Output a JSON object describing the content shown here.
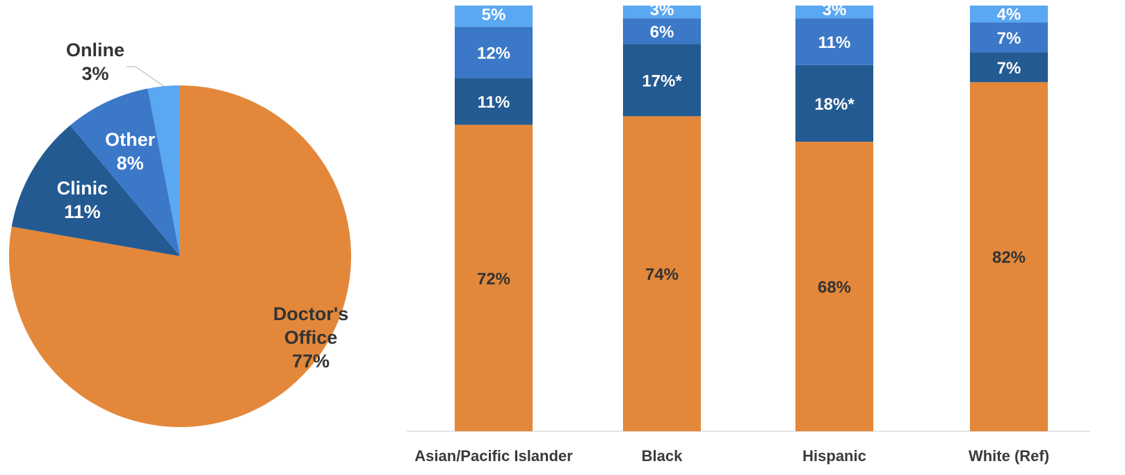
{
  "colors": {
    "doctors_office": "#E3883B",
    "clinic": "#245A92",
    "other": "#3B78C8",
    "online": "#5AA7F2",
    "light_text": "#ffffff",
    "dark_text": "#333333",
    "axis": "#cccccc"
  },
  "chart_data": [
    {
      "type": "pie",
      "slices": [
        {
          "name": "Doctor's Office",
          "label_lines": [
            "Doctor's",
            "Office"
          ],
          "value": 77,
          "value_label": "77%",
          "color": "#E3883B"
        },
        {
          "name": "Clinic",
          "label_lines": [
            "Clinic"
          ],
          "value": 11,
          "value_label": "11%",
          "color": "#245A92"
        },
        {
          "name": "Other",
          "label_lines": [
            "Other"
          ],
          "value": 8,
          "value_label": "8%",
          "color": "#3B78C8"
        },
        {
          "name": "Online",
          "label_lines": [
            "Online"
          ],
          "value": 3,
          "value_label": "3%",
          "color": "#5AA7F2"
        }
      ]
    },
    {
      "type": "bar",
      "stacked": true,
      "categories": [
        "Asian/Pacific Islander",
        "Black",
        "Hispanic",
        "White (Ref)"
      ],
      "ylim": [
        0,
        100
      ],
      "series": [
        {
          "key": "doctors_office",
          "values": [
            72,
            74,
            68,
            82
          ],
          "labels": [
            "72%",
            "74%",
            "68%",
            "82%"
          ],
          "color": "#E3883B"
        },
        {
          "key": "clinic",
          "values": [
            11,
            17,
            18,
            7
          ],
          "labels": [
            "11%",
            "17%*",
            "18%*",
            "7%"
          ],
          "color": "#245A92"
        },
        {
          "key": "other",
          "values": [
            12,
            6,
            11,
            7
          ],
          "labels": [
            "12%",
            "6%",
            "11%",
            "7%"
          ],
          "color": "#3B78C8"
        },
        {
          "key": "online",
          "values": [
            5,
            3,
            3,
            4
          ],
          "labels": [
            "5%",
            "3%",
            "3%",
            "4%"
          ],
          "color": "#5AA7F2"
        }
      ]
    }
  ]
}
